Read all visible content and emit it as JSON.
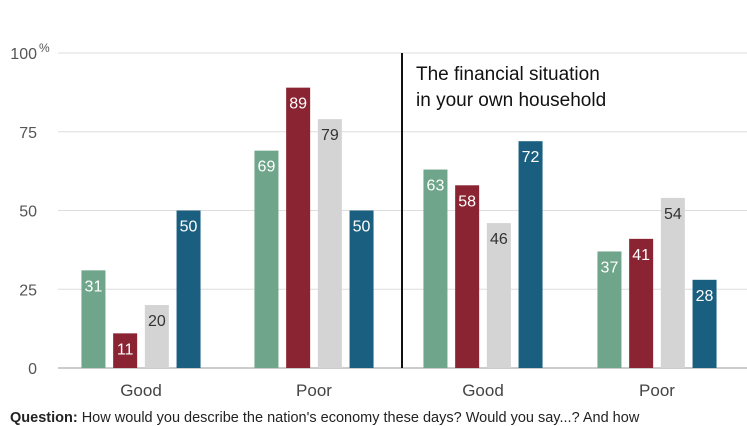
{
  "chart_data": {
    "type": "bar",
    "title": "",
    "xlabel": "",
    "ylabel": "",
    "y_unit": "%",
    "ylim": [
      0,
      100
    ],
    "yticks": [
      0,
      25,
      50,
      75,
      100
    ],
    "grid": true,
    "colors": [
      "#6fa58a",
      "#8a2332",
      "#d4d4d4",
      "#1a5f80"
    ],
    "label_colors": [
      "#ffffff",
      "#ffffff",
      "#333333",
      "#ffffff"
    ],
    "annotation": "The financial situation\nin your own household",
    "groups": [
      {
        "panel": 0,
        "category": "Good",
        "values": [
          31,
          11,
          20,
          50
        ]
      },
      {
        "panel": 0,
        "category": "Poor",
        "values": [
          69,
          89,
          79,
          50
        ]
      },
      {
        "panel": 1,
        "category": "Good",
        "values": [
          63,
          58,
          46,
          72
        ]
      },
      {
        "panel": 1,
        "category": "Poor",
        "values": [
          37,
          41,
          54,
          28
        ]
      }
    ]
  },
  "question": {
    "label": "Question:",
    "text": " How would you describe the nation's economy these days? Would you say...? And how"
  }
}
